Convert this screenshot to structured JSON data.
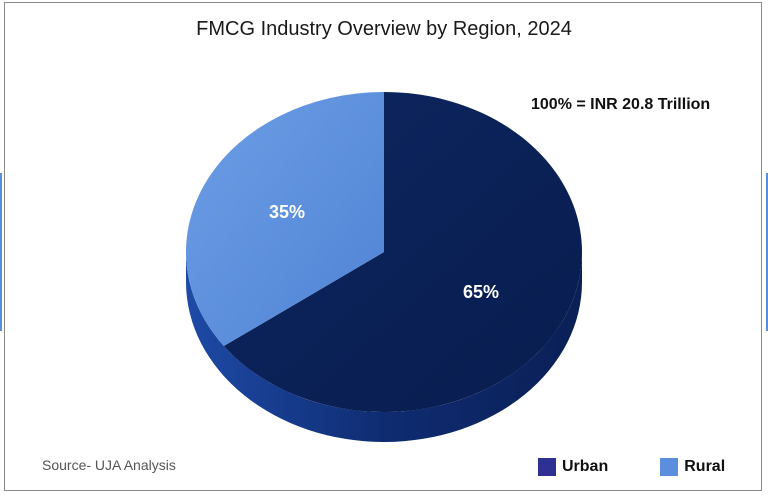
{
  "chart_data": {
    "type": "pie",
    "title": "FMCG Industry Overview by Region, 2024",
    "annotation": "100% = INR 20.8 Trillion",
    "slices": [
      {
        "name": "Urban",
        "value": 65,
        "label": "65%",
        "color": "#0b2258"
      },
      {
        "name": "Rural",
        "value": 35,
        "label": "35%",
        "color": "#5b8fdd"
      }
    ],
    "legend": [
      {
        "label": "Urban",
        "color": "#2e3192"
      },
      {
        "label": "Rural",
        "color": "#5b8fdd"
      }
    ],
    "legend_position": "bottom-right",
    "source": "Source- UJA Analysis"
  }
}
